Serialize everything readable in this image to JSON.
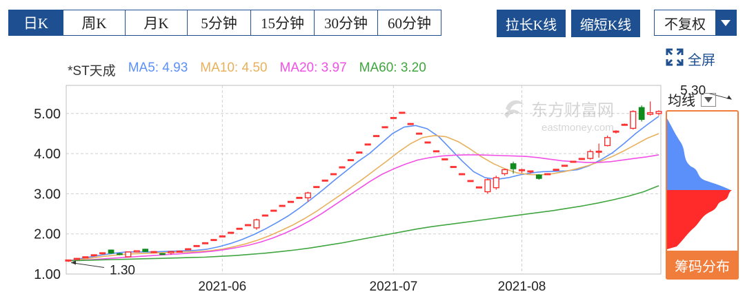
{
  "tabs": [
    {
      "label": "日K",
      "active": true
    },
    {
      "label": "周K",
      "active": false
    },
    {
      "label": "月K",
      "active": false
    },
    {
      "label": "5分钟",
      "active": false
    },
    {
      "label": "15分钟",
      "active": false
    },
    {
      "label": "30分钟",
      "active": false
    },
    {
      "label": "60分钟",
      "active": false
    }
  ],
  "toolbar": {
    "stretch_label": "拉长K线",
    "shorten_label": "缩短K线",
    "adjust_value": "不复权"
  },
  "fullscreen_label": "全屏",
  "legend": {
    "name": "*ST天成",
    "ma5": "MA5: 4.93",
    "ma10": "MA10: 4.50",
    "ma20": "MA20: 3.97",
    "ma60": "MA60: 3.20"
  },
  "colors": {
    "brand": "#1d4f91",
    "ma5": "#5b8ff9",
    "ma10": "#e8b05c",
    "ma20": "#f050e6",
    "ma60": "#3fa53f",
    "up": "#ff2a2a",
    "down": "#118a1e",
    "accent": "#f07d3c"
  },
  "chip": {
    "label": "均线",
    "button": "筹码分布"
  },
  "watermark": {
    "cn": "东方财富网",
    "en": "eastmoney.com"
  },
  "chart_data": {
    "type": "candlestick",
    "title": "*ST天成",
    "ylim": [
      1.0,
      5.7
    ],
    "yticks": [
      "5.00",
      "4.00",
      "3.00",
      "2.00",
      "1.00"
    ],
    "ytick_values": [
      5,
      4,
      3,
      2,
      1
    ],
    "xticks": [
      {
        "label": "2021-06",
        "index": 18
      },
      {
        "label": "2021-07",
        "index": 38
      },
      {
        "label": "2021-08",
        "index": 53
      }
    ],
    "annotations": [
      {
        "text": "5.30",
        "index": 78,
        "value": 5.3
      },
      {
        "text": "1.30",
        "index": 0,
        "value": 1.3
      }
    ],
    "candles": [
      [
        1.33,
        1.35,
        1.3,
        1.36
      ],
      [
        1.37,
        1.39,
        1.36,
        1.4
      ],
      [
        1.42,
        1.43,
        1.41,
        1.44
      ],
      [
        1.47,
        1.48,
        1.46,
        1.49
      ],
      [
        1.52,
        1.53,
        1.51,
        1.54
      ],
      [
        1.6,
        1.52,
        1.5,
        1.61
      ],
      [
        1.51,
        1.5,
        1.47,
        1.53
      ],
      [
        1.43,
        1.55,
        1.42,
        1.56
      ],
      [
        1.55,
        1.58,
        1.54,
        1.59
      ],
      [
        1.62,
        1.56,
        1.55,
        1.63
      ],
      [
        1.55,
        1.56,
        1.52,
        1.57
      ],
      [
        1.51,
        1.5,
        1.49,
        1.52
      ],
      [
        1.53,
        1.56,
        1.48,
        1.57
      ],
      [
        1.56,
        1.57,
        1.55,
        1.58
      ],
      [
        1.62,
        1.63,
        1.61,
        1.64
      ],
      [
        1.7,
        1.71,
        1.69,
        1.72
      ],
      [
        1.77,
        1.78,
        1.76,
        1.79
      ],
      [
        1.85,
        1.86,
        1.84,
        1.87
      ],
      [
        1.94,
        1.95,
        1.93,
        1.96
      ],
      [
        2.03,
        2.04,
        2.02,
        2.05
      ],
      [
        2.13,
        2.14,
        2.12,
        2.15
      ],
      [
        2.22,
        2.23,
        2.21,
        2.24
      ],
      [
        2.15,
        2.35,
        2.1,
        2.38
      ],
      [
        2.46,
        2.47,
        2.45,
        2.48
      ],
      [
        2.58,
        2.59,
        2.57,
        2.6
      ],
      [
        2.7,
        2.71,
        2.69,
        2.72
      ],
      [
        2.8,
        2.81,
        2.79,
        2.82
      ],
      [
        2.9,
        2.91,
        2.89,
        2.92
      ],
      [
        2.9,
        3.02,
        2.8,
        3.05
      ],
      [
        3.17,
        3.18,
        3.16,
        3.19
      ],
      [
        3.33,
        3.34,
        3.32,
        3.35
      ],
      [
        3.49,
        3.5,
        3.48,
        3.51
      ],
      [
        3.66,
        3.67,
        3.65,
        3.68
      ],
      [
        3.84,
        3.85,
        3.83,
        3.86
      ],
      [
        4.03,
        4.04,
        4.02,
        4.05
      ],
      [
        4.23,
        4.24,
        4.22,
        4.25
      ],
      [
        4.44,
        4.45,
        4.43,
        4.46
      ],
      [
        4.66,
        4.67,
        4.65,
        4.68
      ],
      [
        4.89,
        4.9,
        4.88,
        4.91
      ],
      [
        5.03,
        5.03,
        5.02,
        5.03
      ],
      [
        4.75,
        4.75,
        4.74,
        4.76
      ],
      [
        4.51,
        4.51,
        4.5,
        4.52
      ],
      [
        4.29,
        4.29,
        4.28,
        4.3
      ],
      [
        4.07,
        4.07,
        4.06,
        4.08
      ],
      [
        3.87,
        3.87,
        3.86,
        3.88
      ],
      [
        3.68,
        3.68,
        3.67,
        3.69
      ],
      [
        3.5,
        3.5,
        3.49,
        3.51
      ],
      [
        3.33,
        3.33,
        3.32,
        3.34
      ],
      [
        3.17,
        3.17,
        3.16,
        3.18
      ],
      [
        3.05,
        3.35,
        3.0,
        3.38
      ],
      [
        3.15,
        3.4,
        3.1,
        3.45
      ],
      [
        3.5,
        3.6,
        3.45,
        3.62
      ],
      [
        3.75,
        3.62,
        3.5,
        3.8
      ],
      [
        3.58,
        3.6,
        3.52,
        3.62
      ],
      [
        3.55,
        3.57,
        3.5,
        3.58
      ],
      [
        3.47,
        3.38,
        3.35,
        3.49
      ],
      [
        3.49,
        3.5,
        3.48,
        3.51
      ],
      [
        3.6,
        3.61,
        3.59,
        3.62
      ],
      [
        3.7,
        3.71,
        3.69,
        3.72
      ],
      [
        3.8,
        3.81,
        3.79,
        3.82
      ],
      [
        3.87,
        3.88,
        3.86,
        3.89
      ],
      [
        3.88,
        4.05,
        3.85,
        4.1
      ],
      [
        4.05,
        4.06,
        3.9,
        4.25
      ],
      [
        4.2,
        4.4,
        4.18,
        4.45
      ],
      [
        4.55,
        4.56,
        4.5,
        4.58
      ],
      [
        4.72,
        4.73,
        4.7,
        4.75
      ],
      [
        4.63,
        5.05,
        4.6,
        5.08
      ],
      [
        5.15,
        4.85,
        4.8,
        5.2
      ],
      [
        4.98,
        5.02,
        4.95,
        5.3
      ],
      [
        5.0,
        5.05,
        4.95,
        5.08
      ]
    ],
    "ma_series": {
      "MA5": [
        1.33,
        1.38,
        1.43,
        1.48,
        1.52,
        1.55,
        1.55,
        1.55,
        1.56,
        1.57,
        1.58,
        1.59,
        1.62,
        1.68,
        1.76,
        1.86,
        1.98,
        2.12,
        2.28,
        2.45,
        2.65,
        2.87,
        3.1,
        3.34,
        3.57,
        3.8,
        4.0,
        4.25,
        4.5,
        4.66,
        4.7,
        4.62,
        4.42,
        4.12,
        3.82,
        3.55,
        3.4,
        3.36,
        3.4,
        3.47,
        3.52,
        3.55,
        3.56,
        3.57,
        3.6,
        3.7,
        3.85,
        4.02,
        4.25,
        4.5,
        4.72,
        4.93
      ],
      "MA10": [
        1.33,
        1.36,
        1.4,
        1.44,
        1.47,
        1.5,
        1.51,
        1.52,
        1.53,
        1.54,
        1.55,
        1.56,
        1.58,
        1.62,
        1.68,
        1.75,
        1.84,
        1.95,
        2.08,
        2.22,
        2.38,
        2.56,
        2.76,
        2.96,
        3.17,
        3.38,
        3.6,
        3.82,
        4.05,
        4.25,
        4.4,
        4.45,
        4.42,
        4.3,
        4.12,
        3.92,
        3.75,
        3.62,
        3.52,
        3.48,
        3.47,
        3.5,
        3.55,
        3.62,
        3.7,
        3.8,
        3.92,
        4.06,
        4.22,
        4.38,
        4.5
      ],
      "MA20": [
        1.33,
        1.34,
        1.36,
        1.38,
        1.4,
        1.42,
        1.44,
        1.46,
        1.48,
        1.5,
        1.52,
        1.54,
        1.57,
        1.61,
        1.66,
        1.72,
        1.8,
        1.9,
        2.02,
        2.16,
        2.32,
        2.5,
        2.7,
        2.9,
        3.1,
        3.3,
        3.48,
        3.62,
        3.74,
        3.84,
        3.9,
        3.94,
        3.96,
        3.97,
        3.97,
        3.96,
        3.95,
        3.94,
        3.93,
        3.9,
        3.86,
        3.82,
        3.8,
        3.78,
        3.78,
        3.8,
        3.84,
        3.88,
        3.92,
        3.97
      ],
      "MA60": [
        1.33,
        1.34,
        1.35,
        1.36,
        1.37,
        1.38,
        1.39,
        1.4,
        1.41,
        1.42,
        1.44,
        1.46,
        1.49,
        1.52,
        1.56,
        1.6,
        1.65,
        1.71,
        1.77,
        1.84,
        1.91,
        1.98,
        2.05,
        2.12,
        2.18,
        2.23,
        2.28,
        2.33,
        2.38,
        2.43,
        2.48,
        2.53,
        2.58,
        2.64,
        2.7,
        2.77,
        2.85,
        2.94,
        3.05,
        3.2
      ]
    },
    "chip_distribution": {
      "upper_color": "#5b8ff9",
      "lower_color": "#ff2a2a",
      "split_price": 3.0
    }
  }
}
